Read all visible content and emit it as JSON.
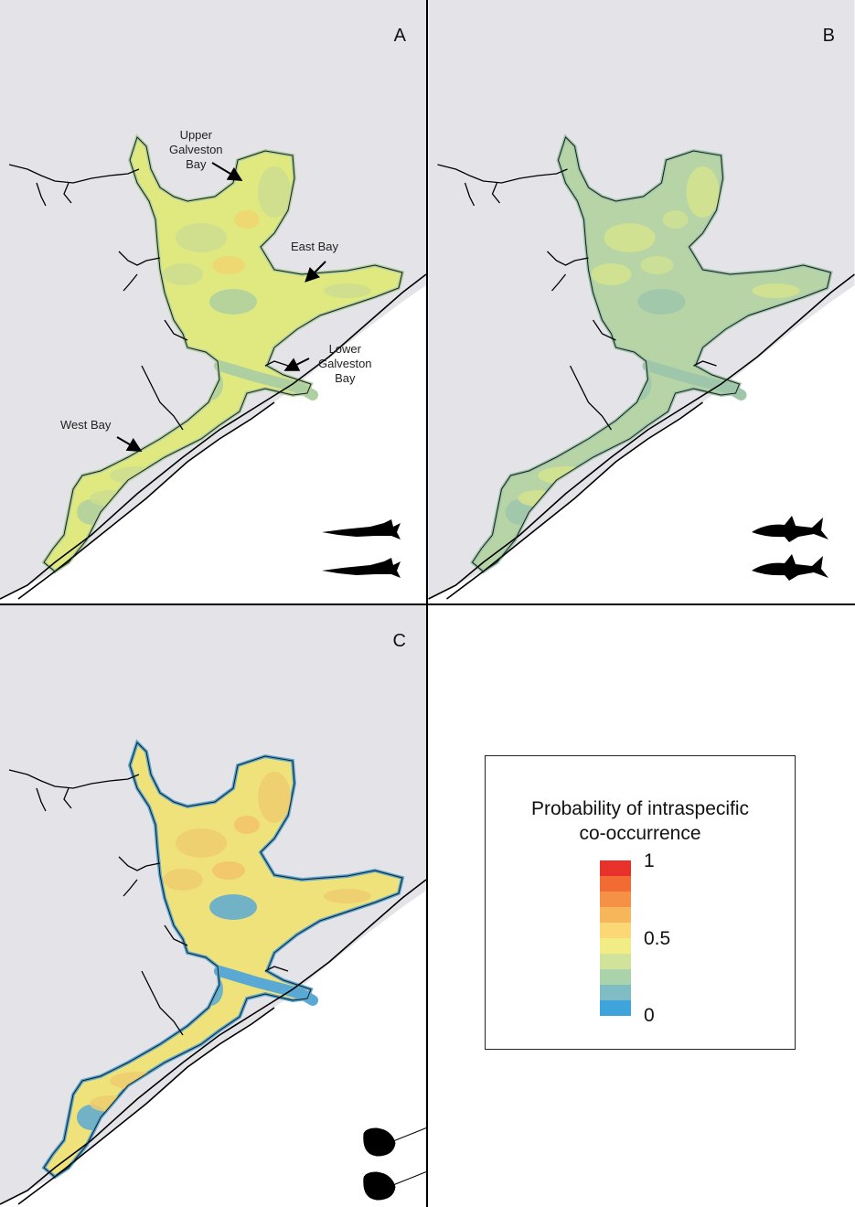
{
  "panels": [
    {
      "id": "A",
      "label": "A",
      "animal_icon": "gar-fish-icon",
      "annotations": [
        {
          "key": "upper",
          "lines": [
            "Upper",
            "Galveston",
            "Bay"
          ]
        },
        {
          "key": "east",
          "lines": [
            "East Bay"
          ]
        },
        {
          "key": "lower",
          "lines": [
            "Lower",
            "Galveston",
            "Bay"
          ]
        },
        {
          "key": "west",
          "lines": [
            "West Bay"
          ]
        }
      ],
      "palette": {
        "base": "#e0e97f",
        "patch": "#cbdd8f",
        "deep": "#aecfa0",
        "hot": "#f0d56f"
      }
    },
    {
      "id": "B",
      "label": "B",
      "animal_icon": "shark-icon",
      "palette": {
        "base": "#b6d4a6",
        "patch": "#d6e38e",
        "deep": "#9ec6ab",
        "hot": "#cfe193"
      }
    },
    {
      "id": "C",
      "label": "C",
      "animal_icon": "stingray-icon",
      "palette": {
        "base": "#f0e27b",
        "patch": "#efcd6f",
        "deep": "#5aa9d4",
        "hot": "#f3c26a"
      }
    }
  ],
  "legend": {
    "title_line1": "Probability of intraspecific",
    "title_line2": "co-occurrence",
    "ticks": {
      "top": "1",
      "mid": "0.5",
      "bottom": "0"
    },
    "colors": [
      "#e8312a",
      "#f26b35",
      "#f59146",
      "#f8b65a",
      "#fbd775",
      "#f2ec86",
      "#d1e39b",
      "#aad3ab",
      "#7fbcc4",
      "#3fa4dc"
    ]
  },
  "colors": {
    "land": "#e4e4e8",
    "water": "#ffffff",
    "coast": "#000000"
  }
}
